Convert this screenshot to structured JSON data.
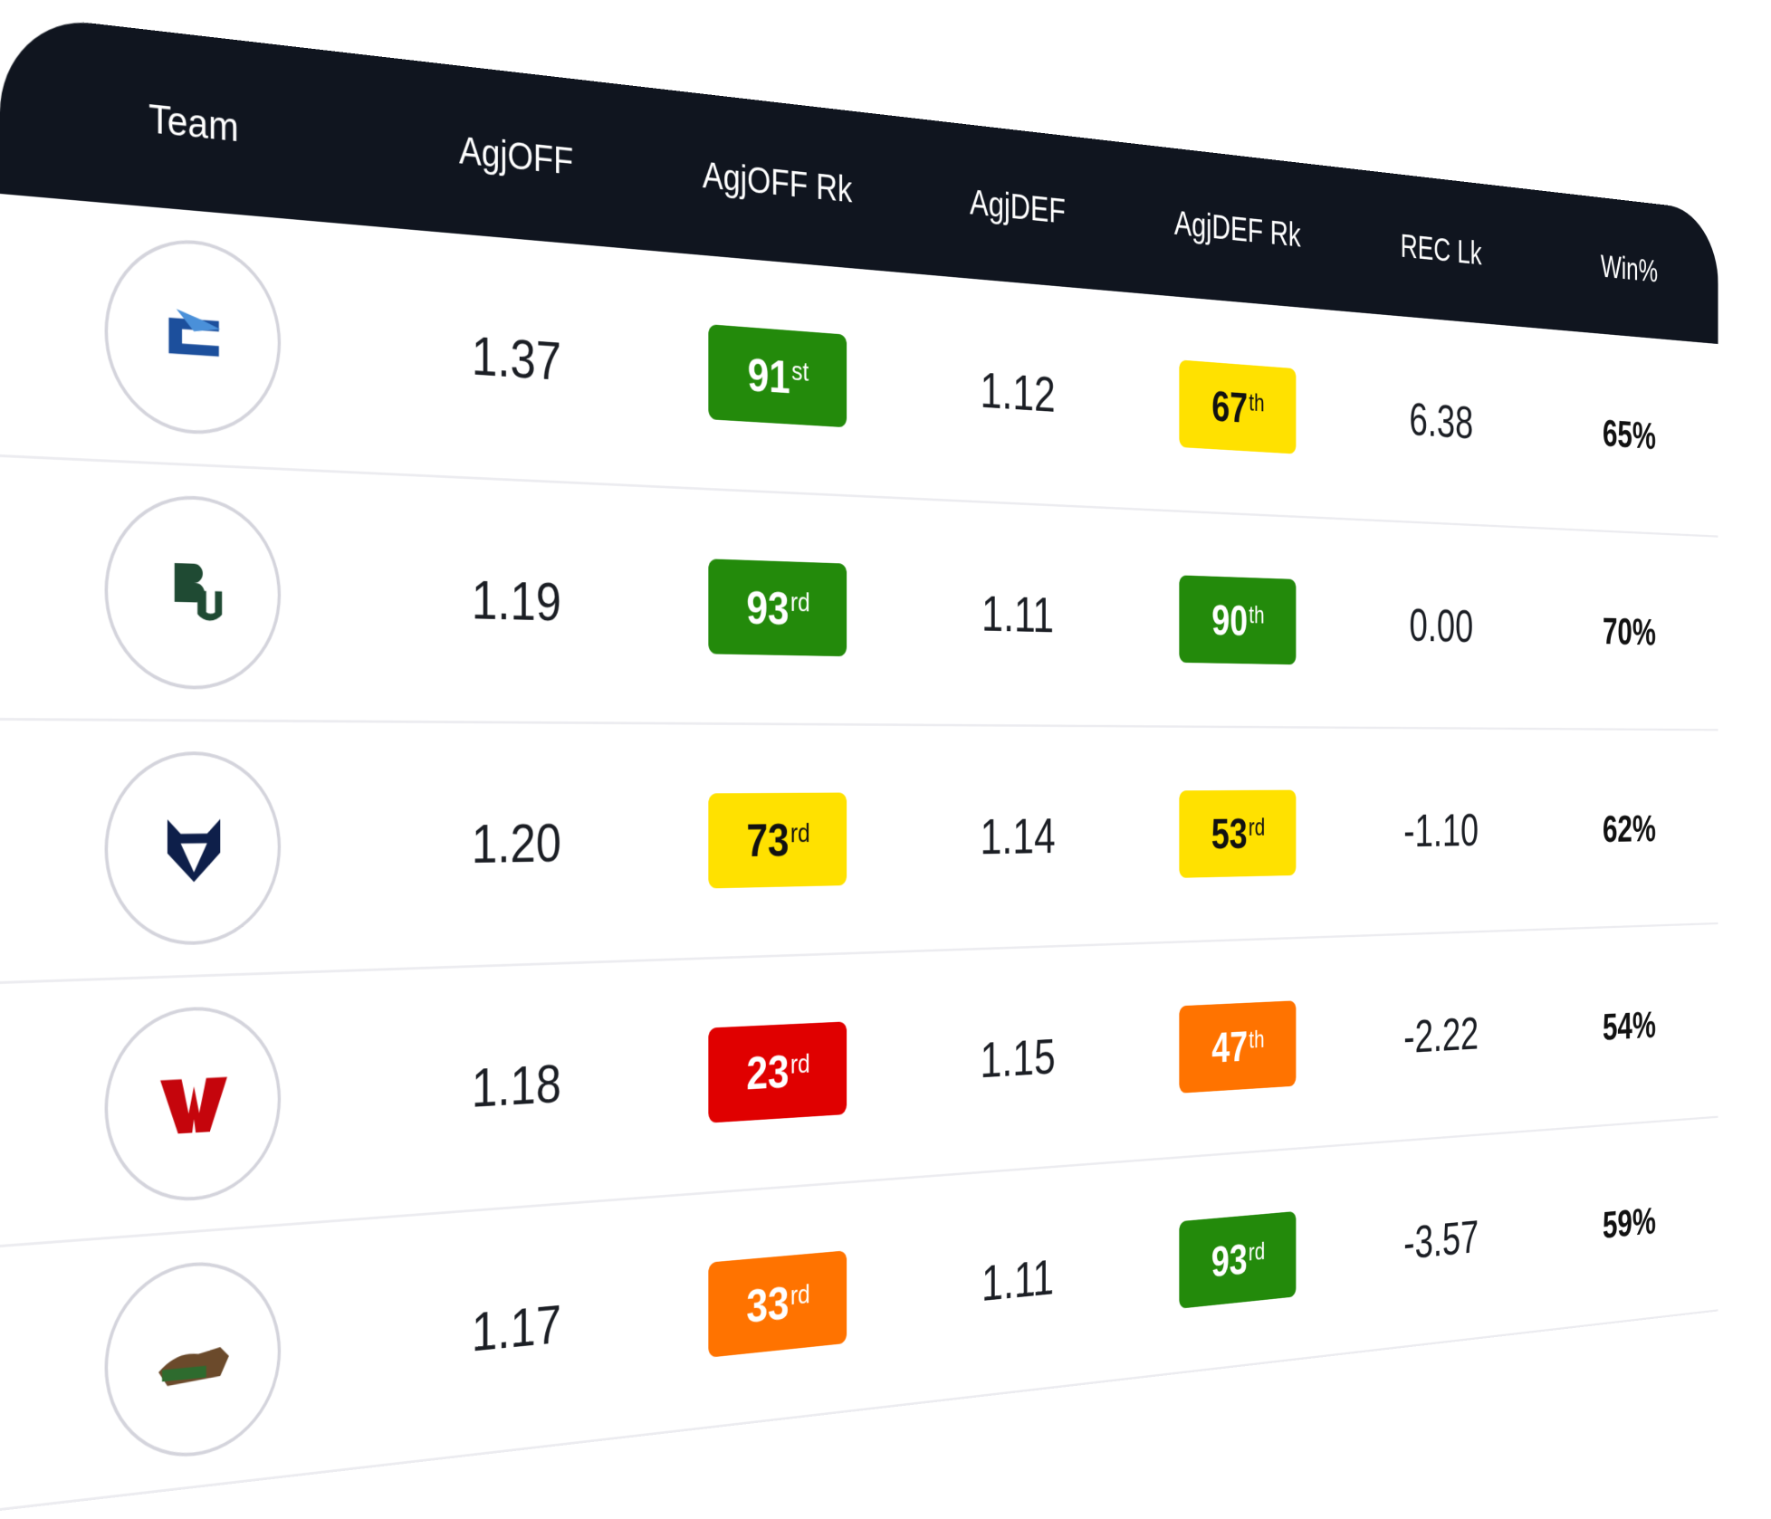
{
  "header": [
    "Team",
    "AgjOFF",
    "AgjOFF Rk",
    "AgjDEF",
    "AgjDEF Rk",
    "REC Lk",
    "Win%"
  ],
  "rows": [
    {
      "agj_off": "1.37",
      "agj_off_rk": {
        "rank": "91",
        "suffix": "st",
        "color": "#238a0b"
      },
      "agj_def": "1.12",
      "agj_def_rk": {
        "rank": "67",
        "suffix": "th",
        "color": "#ffe100"
      },
      "rec_lk": "6.38",
      "win": "65%"
    },
    {
      "agj_off": "1.19",
      "agj_off_rk": {
        "rank": "93",
        "suffix": "rd",
        "color": "#238a0b"
      },
      "agj_def": "1.11",
      "agj_def_rk": {
        "rank": "90",
        "suffix": "th",
        "color": "#238a0b"
      },
      "rec_lk": "0.00",
      "win": "70%"
    },
    {
      "agj_off": "1.20",
      "agj_off_rk": {
        "rank": "73",
        "suffix": "rd",
        "color": "#ffe100"
      },
      "agj_def": "1.14",
      "agj_def_rk": {
        "rank": "53",
        "suffix": "rd",
        "color": "#ffe100"
      },
      "rec_lk": "-1.10",
      "win": "62%"
    },
    {
      "agj_off": "1.18",
      "agj_off_rk": {
        "rank": "23",
        "suffix": "rd",
        "color": "#e00000"
      },
      "agj_def": "1.15",
      "agj_def_rk": {
        "rank": "47",
        "suffix": "th",
        "color": "#ff7300"
      },
      "rec_lk": "-2.22",
      "win": "54%"
    },
    {
      "agj_off": "1.17",
      "agj_off_rk": {
        "rank": "33",
        "suffix": "rd",
        "color": "#ff7300"
      },
      "agj_def": "1.11",
      "agj_def_rk": {
        "rank": "93",
        "suffix": "rd",
        "color": "#238a0b"
      },
      "rec_lk": "-3.57",
      "win": "59%"
    }
  ]
}
